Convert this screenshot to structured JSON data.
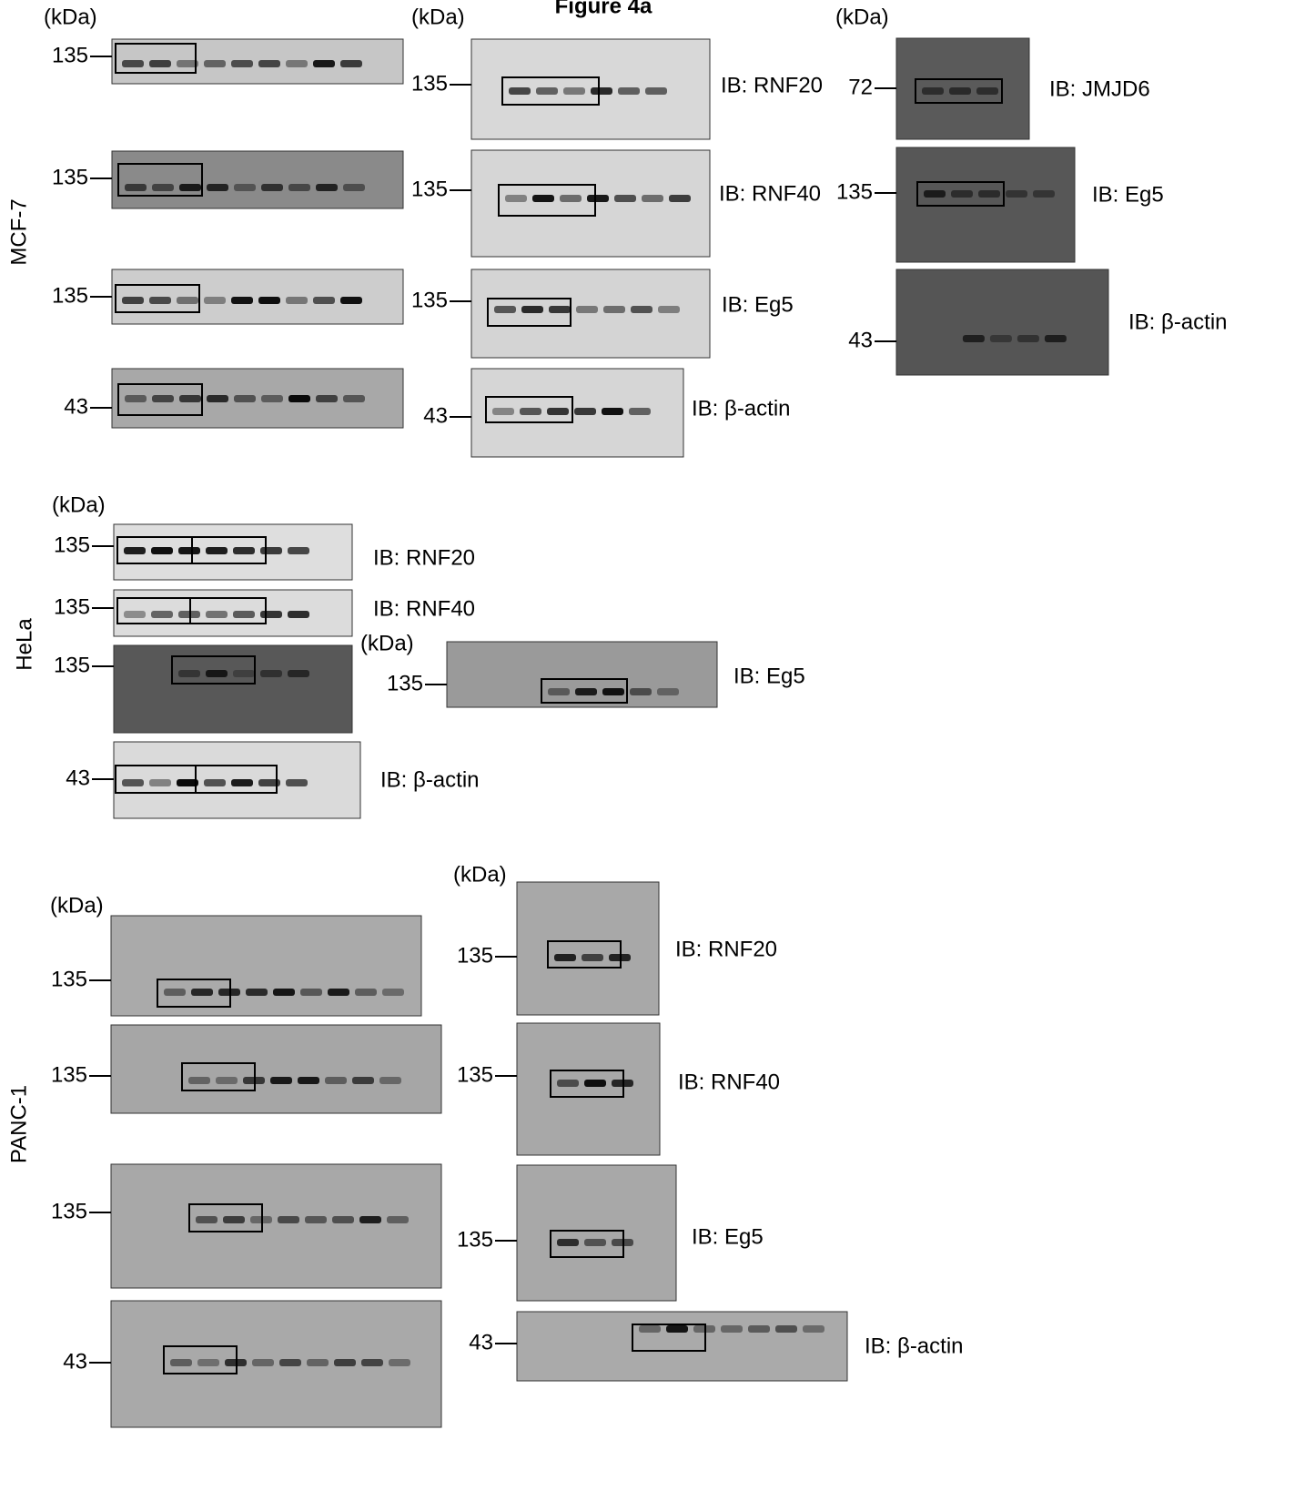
{
  "title": "Figure 4a",
  "sections": [
    {
      "cell_line": "MCF-7",
      "groups": [
        {
          "unit": "(kDa)",
          "blots": [
            {
              "marker": "135"
            },
            {
              "marker": "135"
            },
            {
              "marker": "135"
            },
            {
              "marker": "43"
            }
          ]
        },
        {
          "unit": "(kDa)",
          "blots": [
            {
              "marker": "135",
              "label": "IB: RNF20"
            },
            {
              "marker": "135",
              "label": "IB: RNF40"
            },
            {
              "marker": "135",
              "label": "IB: Eg5"
            },
            {
              "marker": "43",
              "label": "IB: β-actin"
            }
          ]
        },
        {
          "unit": "(kDa)",
          "blots": [
            {
              "marker": "72",
              "label": "IB: JMJD6"
            },
            {
              "marker": "135",
              "label": "IB: Eg5"
            },
            {
              "marker": "43",
              "label": "IB: β-actin"
            }
          ]
        }
      ]
    },
    {
      "cell_line": "HeLa",
      "groups": [
        {
          "unit": "(kDa)",
          "blots": [
            {
              "marker": "135",
              "label": "IB: RNF20"
            },
            {
              "marker": "135",
              "label": "IB: RNF40"
            },
            {
              "marker": "135"
            },
            {
              "marker": "43",
              "label": "IB: β-actin"
            }
          ]
        },
        {
          "unit": "(kDa)",
          "blots": [
            {
              "marker": "135",
              "label": "IB: Eg5"
            }
          ]
        }
      ]
    },
    {
      "cell_line": "PANC-1",
      "groups": [
        {
          "unit": "(kDa)",
          "blots": [
            {
              "marker": "135"
            },
            {
              "marker": "135"
            },
            {
              "marker": "135"
            },
            {
              "marker": "43"
            }
          ]
        },
        {
          "unit": "(kDa)",
          "blots": [
            {
              "marker": "135",
              "label": "IB: RNF20"
            },
            {
              "marker": "135",
              "label": "IB: RNF40"
            },
            {
              "marker": "135",
              "label": "IB: Eg5"
            },
            {
              "marker": "43",
              "label": "IB: β-actin"
            }
          ]
        }
      ]
    }
  ]
}
